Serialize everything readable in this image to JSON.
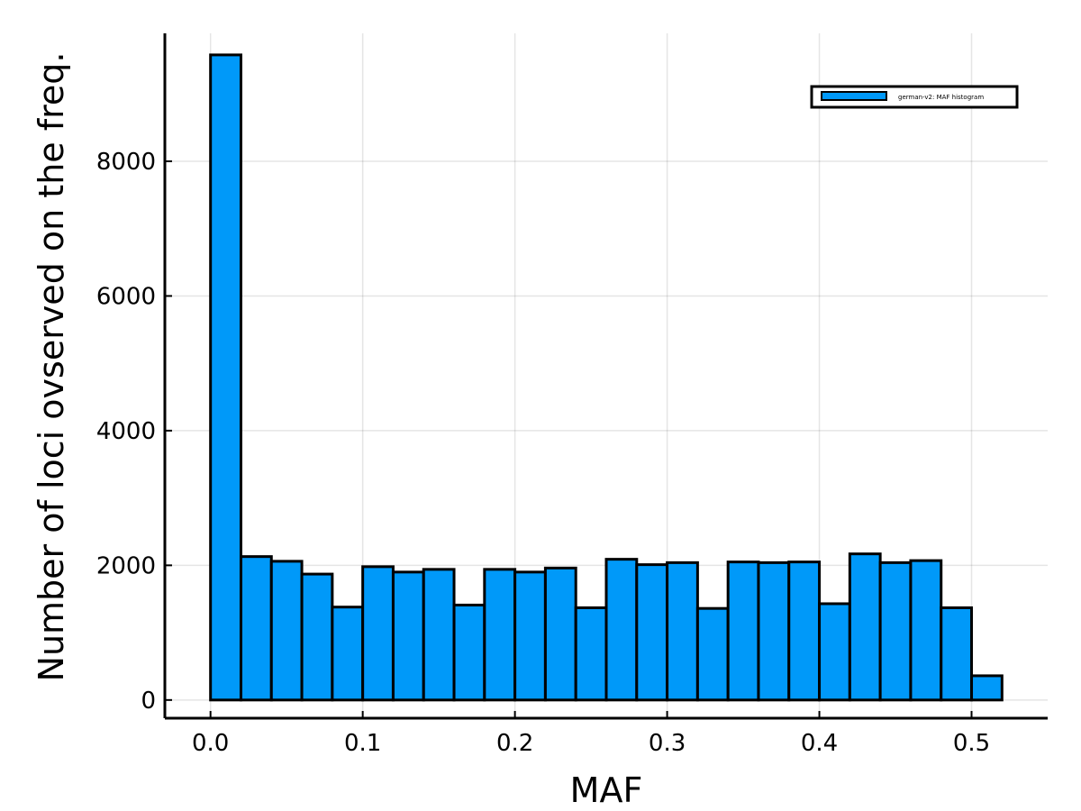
{
  "chart_data": {
    "type": "bar",
    "xlabel": "MAF",
    "ylabel": "Number of loci ovserved on the freq.",
    "bin_edges": [
      0.0,
      0.02,
      0.04,
      0.06,
      0.08,
      0.1,
      0.12,
      0.14,
      0.16,
      0.18,
      0.2,
      0.22,
      0.24,
      0.26,
      0.28,
      0.3,
      0.32,
      0.34,
      0.36,
      0.38,
      0.4,
      0.42,
      0.44,
      0.46,
      0.48,
      0.5,
      0.52
    ],
    "values": [
      9580,
      2130,
      2060,
      1870,
      1380,
      1980,
      1900,
      1940,
      1410,
      1940,
      1900,
      1960,
      1370,
      2090,
      2010,
      2040,
      1360,
      2050,
      2040,
      2050,
      1430,
      2170,
      2040,
      2070,
      1370,
      360
    ],
    "xlim": [
      -0.03,
      0.55
    ],
    "ylim": [
      -270,
      9900
    ],
    "xticks": [
      0.0,
      0.1,
      0.2,
      0.3,
      0.4,
      0.5
    ],
    "xtick_labels": [
      "0.0",
      "0.1",
      "0.2",
      "0.3",
      "0.4",
      "0.5"
    ],
    "yticks": [
      0,
      2000,
      4000,
      6000,
      8000
    ],
    "ytick_labels": [
      "0",
      "2000",
      "4000",
      "6000",
      "8000"
    ],
    "grid": true,
    "legend_position": "top-right",
    "series": [
      {
        "name": "german-v2: MAF histogram",
        "color": "#0099f9"
      }
    ]
  }
}
